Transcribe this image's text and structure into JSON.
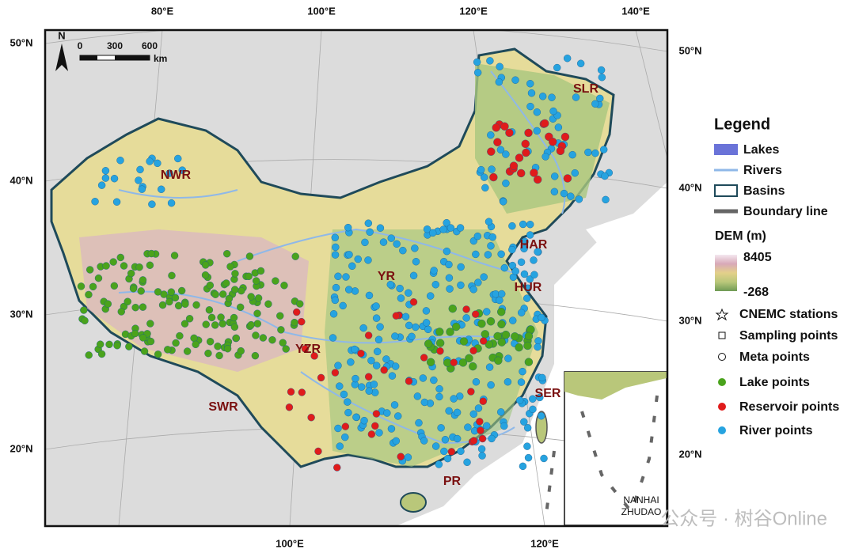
{
  "map": {
    "north_arrow": "N",
    "scale_bar": {
      "ticks": [
        0,
        300,
        600
      ],
      "unit": "km"
    },
    "top_lon_labels": [
      "80°E",
      "100°E",
      "120°E",
      "140°E"
    ],
    "bottom_lon_labels": [
      "100°E",
      "120°E"
    ],
    "left_lat_labels": [
      "50°N",
      "40°N",
      "30°N",
      "20°N"
    ],
    "right_lat_labels": [
      "50°N",
      "40°N",
      "30°N",
      "20°N"
    ],
    "basins": [
      "SLR",
      "NWR",
      "HAR",
      "YR",
      "HUR",
      "YZR",
      "SER",
      "SWR",
      "PR"
    ],
    "inset_label": [
      "NANHAI",
      "ZHUDAO"
    ]
  },
  "legend": {
    "title": "Legend",
    "layers": [
      "Lakes",
      "Rivers",
      "Basins",
      "Boundary line"
    ],
    "dem_title": "DEM (m)",
    "dem_max": 8405,
    "dem_min": -268,
    "points": [
      "CNEMC stations",
      "Sampling points",
      "Meta points",
      "Lake points",
      "Reservoir points",
      "River points"
    ]
  },
  "watermark": "公众号 · 树谷Online"
}
